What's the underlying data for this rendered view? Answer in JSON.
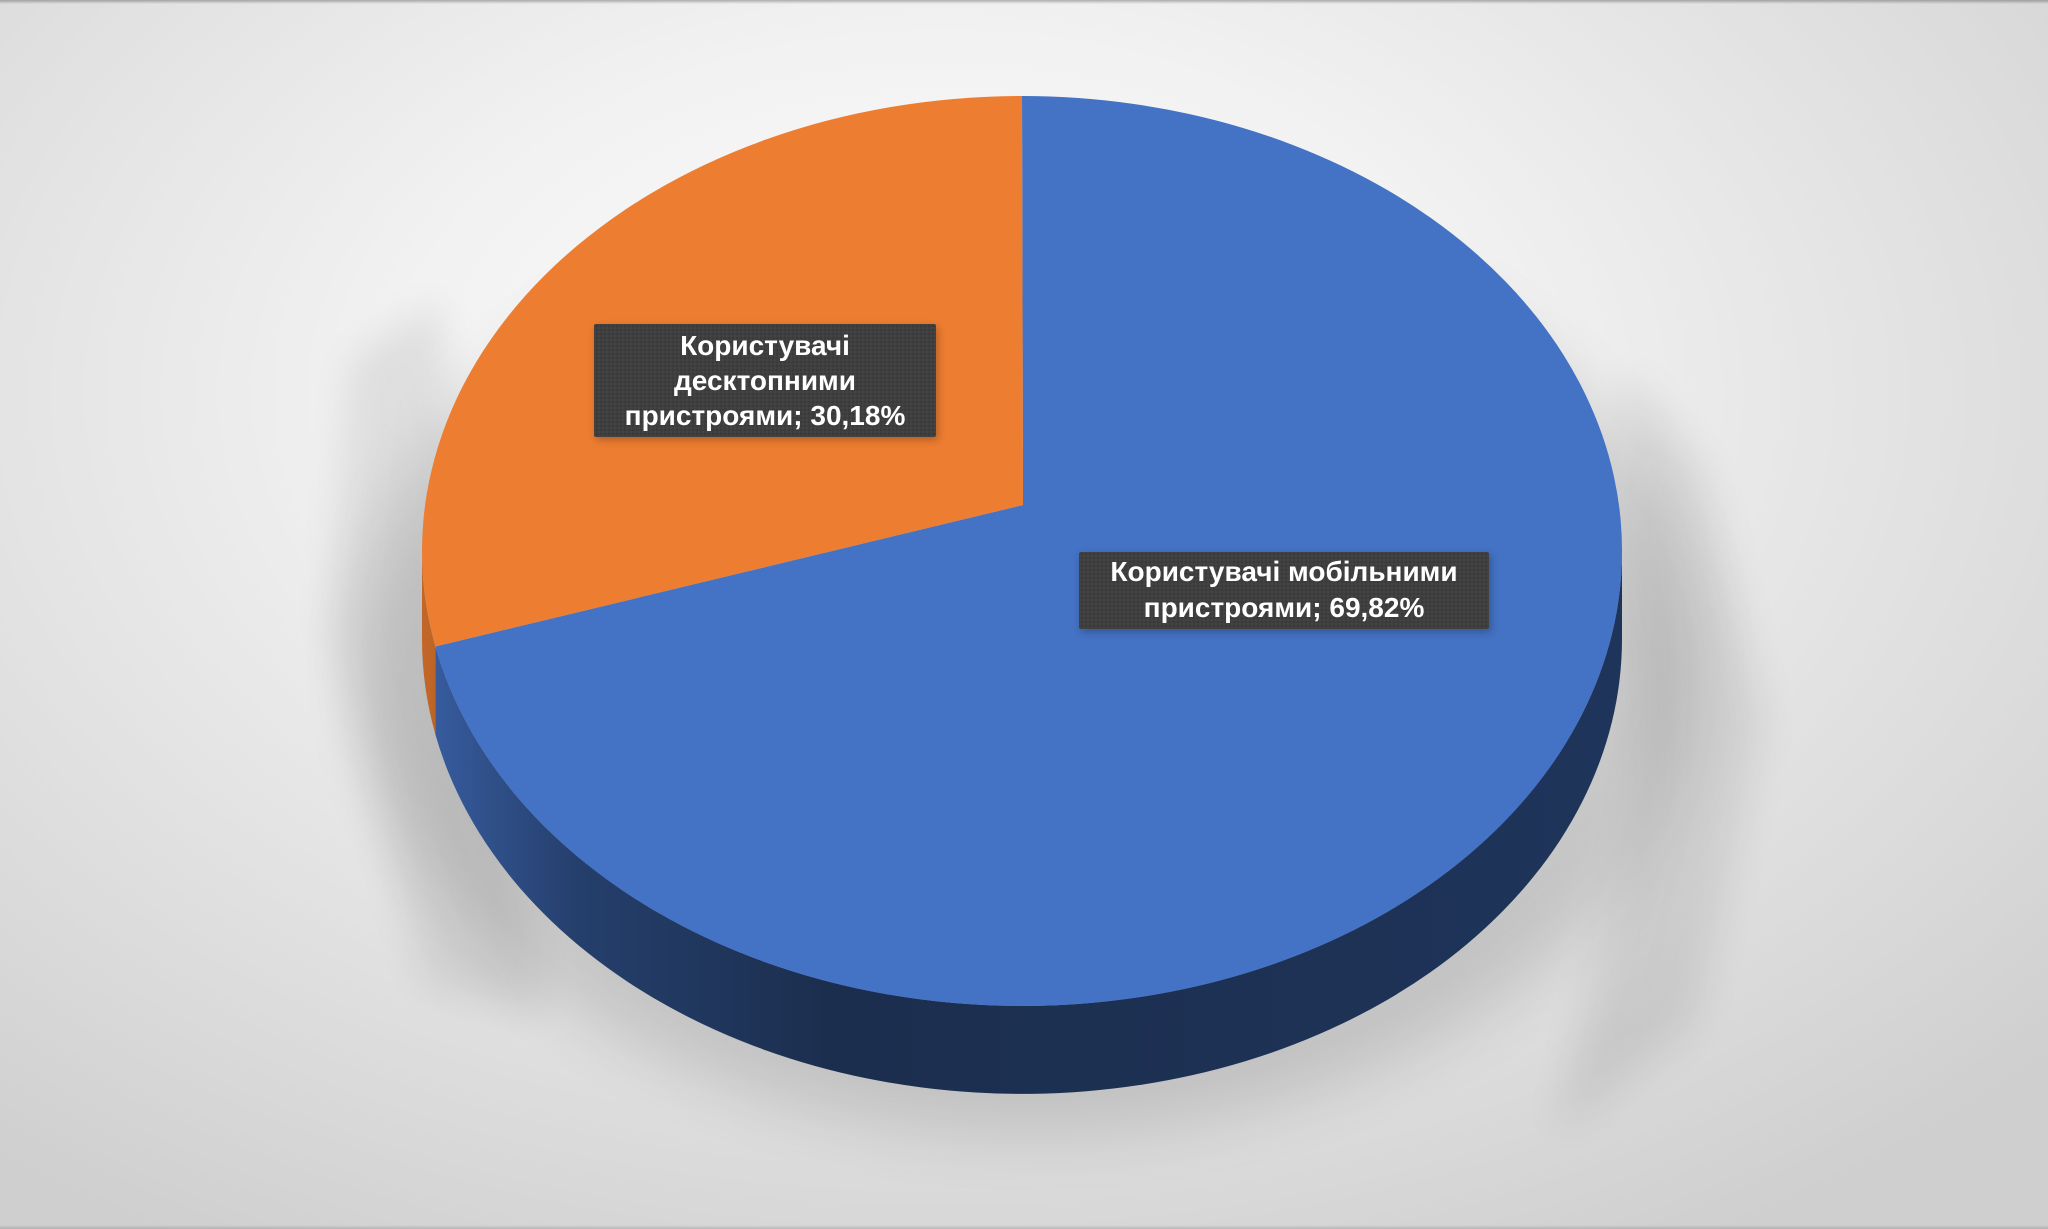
{
  "page": {
    "kind": "infographic-slide",
    "title": "",
    "background": "light gray studio gradient"
  },
  "chart_data": {
    "type": "pie",
    "style": "3d-extruded",
    "title": "",
    "unit": "%",
    "rotation_start_deg": 0,
    "direction": "clockwise",
    "legend": "none",
    "categories": [
      "Користувачі мобільними пристроями",
      "Користувачі десктопними пристроями"
    ],
    "values": [
      69.82,
      30.18
    ],
    "slices": [
      {
        "name": "Користувачі мобільними пристроями",
        "value_pct": 69.82,
        "display_value": "69,82%",
        "color": "#4472C4",
        "label_lines": [
          "Користувачі мобільними",
          "пристроями; 69,82%"
        ],
        "full_label": "Користувачі мобільними пристроями; 69,82%"
      },
      {
        "name": "Користувачі десктопними пристроями",
        "value_pct": 30.18,
        "display_value": "30,18%",
        "color": "#ED7D31",
        "label_lines": [
          "Користувачі",
          "десктопними",
          "пристроями; 30,18%"
        ],
        "full_label": "Користувачі десктопними пристроями; 30,18%"
      }
    ],
    "data_labels": {
      "style": "dark-box",
      "background": "#3A3A3A",
      "text_color": "#FFFFFF"
    }
  }
}
